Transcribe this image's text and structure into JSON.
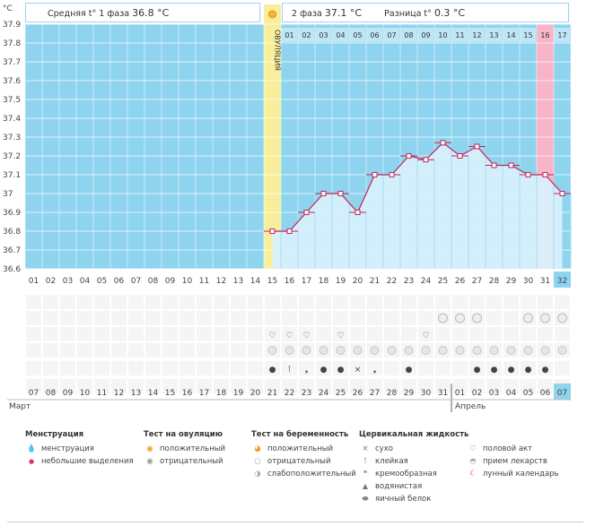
{
  "header": {
    "phase1_label": "Средняя t° 1 фаза",
    "phase1_value": "36.8 °C",
    "phase2_label": "2 фаза",
    "phase2_value": "37.1 °C",
    "diff_label": "Разница t°",
    "diff_value": "0.3 °C",
    "unit": "°C"
  },
  "ovulation_label": "ОВУЛЯЦИЯ",
  "chart_data": {
    "type": "line",
    "title": "Базальная температура",
    "ylabel": "°C",
    "ylim": [
      36.6,
      37.9
    ],
    "yticks": [
      "37.9",
      "37.8",
      "37.7",
      "37.6",
      "37.5",
      "37.4",
      "37.3",
      "37.2",
      "37.1",
      "37",
      "36.9",
      "36.8",
      "36.7",
      "36.6"
    ],
    "cycle_days": [
      "01",
      "02",
      "03",
      "04",
      "05",
      "06",
      "07",
      "08",
      "09",
      "10",
      "11",
      "12",
      "13",
      "14",
      "15",
      "16",
      "17",
      "18",
      "19",
      "20",
      "21",
      "22",
      "23",
      "24",
      "25",
      "26",
      "27",
      "28",
      "29",
      "30",
      "31",
      "32"
    ],
    "phase2_days": [
      "01",
      "02",
      "03",
      "04",
      "05",
      "06",
      "07",
      "08",
      "09",
      "10",
      "11",
      "12",
      "13",
      "14",
      "15",
      "16",
      "17"
    ],
    "ovulation_day": 15,
    "highlight_phase2_day": "16",
    "series": [
      {
        "name": "t°",
        "start_day": 15,
        "values": [
          36.8,
          36.8,
          36.9,
          37.0,
          37.0,
          36.9,
          37.1,
          37.1,
          37.2,
          37.18,
          37.27,
          37.2,
          37.25,
          37.15,
          37.15,
          37.1,
          37.1,
          37.0
        ]
      }
    ]
  },
  "calendar": {
    "dates": [
      "07",
      "08",
      "09",
      "10",
      "11",
      "12",
      "13",
      "14",
      "15",
      "16",
      "17",
      "18",
      "19",
      "20",
      "21",
      "22",
      "23",
      "24",
      "25",
      "26",
      "27",
      "28",
      "29",
      "30",
      "31",
      "01",
      "02",
      "03",
      "04",
      "05",
      "06",
      "07"
    ],
    "red_dates_index": [
      1,
      2,
      8,
      9,
      15,
      16,
      22,
      23,
      29,
      30
    ],
    "month1": "Март",
    "month2": "Апрель",
    "last_day_label": "07"
  },
  "rows": {
    "pregnancy_days": [
      25,
      26,
      27,
      30,
      31,
      32
    ],
    "sex_days": [
      15,
      16,
      17,
      19,
      24
    ],
    "meds_days": [
      15,
      16,
      17,
      18,
      19,
      20,
      21,
      22,
      23,
      24,
      25,
      26,
      27,
      28,
      29,
      30,
      31,
      32
    ],
    "mucus": [
      {
        "day": 15,
        "sym": "drop"
      },
      {
        "day": 16,
        "sym": "T"
      },
      {
        "day": 17,
        "sym": "cream"
      },
      {
        "day": 18,
        "sym": "drop"
      },
      {
        "day": 19,
        "sym": "drop"
      },
      {
        "day": 20,
        "sym": "x"
      },
      {
        "day": 21,
        "sym": "cream"
      },
      {
        "day": 23,
        "sym": "drop"
      },
      {
        "day": 27,
        "sym": "drop"
      },
      {
        "day": 28,
        "sym": "drop"
      },
      {
        "day": 29,
        "sym": "drop"
      },
      {
        "day": 30,
        "sym": "drop"
      },
      {
        "day": 31,
        "sym": "drop"
      }
    ]
  },
  "legend": {
    "menstruation": {
      "title": "Менструация",
      "items": [
        "менструация",
        "небольшие выделения"
      ]
    },
    "ovulation_test": {
      "title": "Тест на овуляцию",
      "items": [
        "положительный",
        "отрицательный"
      ]
    },
    "pregnancy_test": {
      "title": "Тест на беременность",
      "items": [
        "положительный",
        "отрицательный",
        "слабоположительный"
      ]
    },
    "cervical": {
      "title": "Цервикальная жидкость",
      "items": [
        "сухо",
        "клейкая",
        "кремообразная",
        "водянистая",
        "яичный белок"
      ]
    },
    "other": {
      "items": [
        "половой акт",
        "прием лекарств",
        "лунный календарь"
      ]
    }
  },
  "colors": {
    "phase1_bg": "#8fd4ee",
    "phase2_bg": "#d8f0fc",
    "ovulation": "#f9ee9c",
    "highlight": "#f8b4c8",
    "line": "#c0245a",
    "grid": "#ffffff",
    "red_text": "#cc0044",
    "today": "#8fd4ee"
  }
}
